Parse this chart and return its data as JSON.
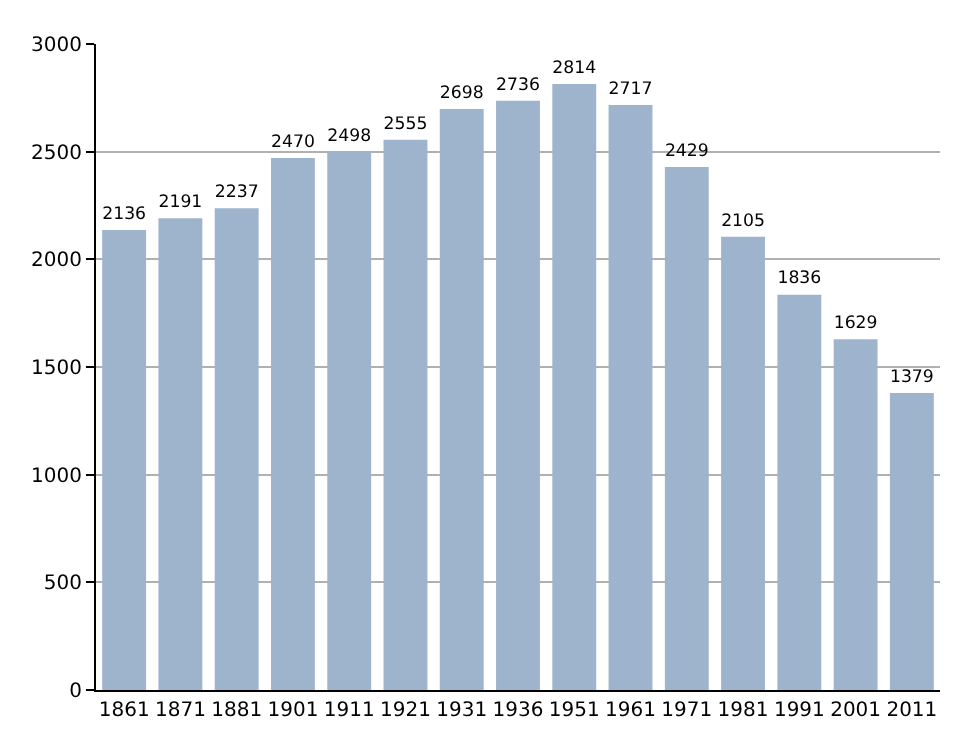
{
  "chart_data": {
    "type": "bar",
    "categories": [
      "1861",
      "1871",
      "1881",
      "1901",
      "1911",
      "1921",
      "1931",
      "1936",
      "1951",
      "1961",
      "1971",
      "1981",
      "1991",
      "2001",
      "2011"
    ],
    "values": [
      2136,
      2191,
      2237,
      2470,
      2498,
      2555,
      2698,
      2736,
      2814,
      2717,
      2429,
      2105,
      1836,
      1629,
      1379
    ],
    "color": "#9db4cc",
    "ylim": [
      0,
      3000
    ],
    "yticks": [
      0,
      500,
      1000,
      1500,
      2000,
      2500,
      3000
    ],
    "grid": "y",
    "data_labels": true
  }
}
